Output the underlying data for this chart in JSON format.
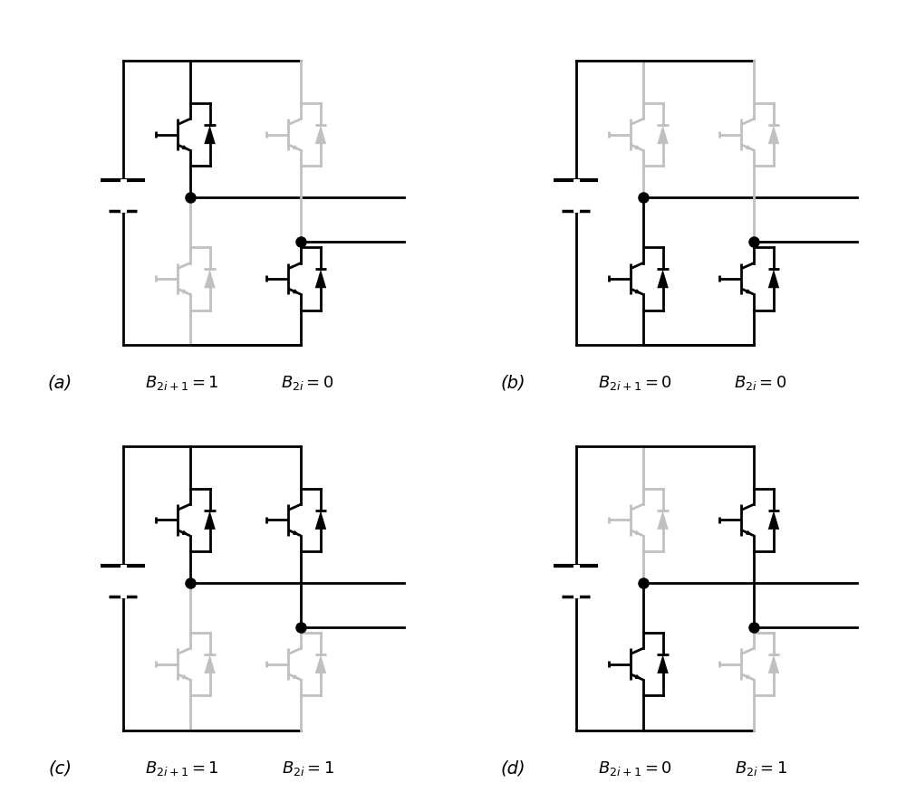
{
  "fig_width": 10.0,
  "fig_height": 8.87,
  "dpi": 100,
  "bg_color": "#ffffff",
  "active_color": "#000000",
  "inactive_color": "#c0c0c0",
  "panel_configs": [
    {
      "tl": true,
      "tr": false,
      "bl": false,
      "br": true,
      "label": "a",
      "cap1": "B_{2i+1}=1",
      "cap2": "B_{2i}=0"
    },
    {
      "tl": false,
      "tr": false,
      "bl": true,
      "br": true,
      "label": "b",
      "cap1": "B_{2i+1}=0",
      "cap2": "B_{2i}=0"
    },
    {
      "tl": true,
      "tr": true,
      "bl": false,
      "br": false,
      "label": "c",
      "cap1": "B_{2i+1}=1",
      "cap2": "B_{2i}=1"
    },
    {
      "tl": false,
      "tr": true,
      "bl": true,
      "br": false,
      "label": "d",
      "cap1": "B_{2i+1}=0",
      "cap2": "B_{2i}=1"
    }
  ]
}
